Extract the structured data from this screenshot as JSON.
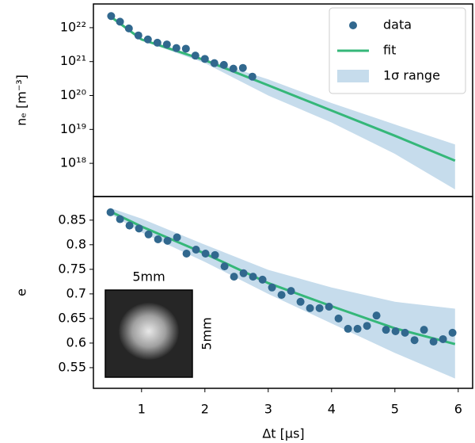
{
  "chart_data": [
    {
      "type": "line",
      "ylabel": "nₑ [m⁻³]",
      "yscale": "log",
      "xlim": [
        0.24,
        6.24
      ],
      "ylim": [
        1.05e+17,
        5e+22
      ],
      "yticks": [
        {
          "value": 1e+22,
          "label": "10²²"
        },
        {
          "value": 1e+21,
          "label": "10²¹"
        },
        {
          "value": 1e+20,
          "label": "10²⁰"
        },
        {
          "value": 1e+19,
          "label": "10¹⁹"
        },
        {
          "value": 1e+18,
          "label": "10¹⁸"
        }
      ],
      "legend": "upper right",
      "series": [
        {
          "name": "1σ range",
          "type": "band",
          "color": "#c6dcec",
          "x": [
            0.5,
            1,
            2,
            3,
            4,
            5,
            5.95
          ],
          "lower": [
            2.2e+22,
            4.2e+21,
            9e+20,
            1e+20,
            1.6e+19,
            1.9e+18,
            1.7e+17
          ],
          "upper": [
            2.2e+22,
            4.8e+21,
            1.2e+21,
            3e+20,
            6e+19,
            1.4e+19,
            3.6e+18
          ]
        },
        {
          "name": "fit",
          "type": "line",
          "color": "#35b779",
          "x": [
            0.5,
            1,
            2,
            3,
            4,
            5,
            5.95
          ],
          "values": [
            2.2e+22,
            4.5e+21,
            1.1e+21,
            2e+20,
            3.6e+19,
            6.5e+18,
            1.2e+18
          ]
        },
        {
          "name": "data",
          "type": "scatter",
          "color": "#31688e",
          "x": [
            0.52,
            0.66,
            0.8,
            0.95,
            1.1,
            1.25,
            1.4,
            1.55,
            1.7,
            1.85,
            2.0,
            2.15,
            2.3,
            2.45,
            2.6,
            2.75
          ],
          "values": [
            2.2e+22,
            1.5e+22,
            9.5e+21,
            5.9e+21,
            4.5e+21,
            3.6e+21,
            3.2e+21,
            2.5e+21,
            2.4e+21,
            1.5e+21,
            1.2e+21,
            9e+20,
            8e+20,
            6.2e+20,
            6.5e+20,
            3.6e+20
          ]
        }
      ]
    },
    {
      "type": "line",
      "ylabel": "e",
      "xlabel": "Δt [μs]",
      "xlim": [
        0.24,
        6.24
      ],
      "ylim": [
        0.508,
        0.898
      ],
      "xticks": [
        1,
        2,
        3,
        4,
        5,
        6
      ],
      "yticks": [
        0.85,
        0.8,
        0.75,
        0.7,
        0.65,
        0.6,
        0.55
      ],
      "inset": {
        "top_label": "5mm",
        "side_label": "5mm"
      },
      "series": [
        {
          "name": "1σ range",
          "type": "band",
          "color": "#c6dcec",
          "x": [
            0.5,
            1,
            2,
            3,
            4,
            5,
            5.95
          ],
          "lower": [
            0.863,
            0.825,
            0.765,
            0.7,
            0.64,
            0.58,
            0.528
          ],
          "upper": [
            0.875,
            0.853,
            0.8,
            0.749,
            0.713,
            0.684,
            0.67
          ]
        },
        {
          "name": "fit",
          "type": "line",
          "color": "#35b779",
          "x": [
            0.5,
            1,
            2,
            3,
            4,
            5,
            5.95
          ],
          "values": [
            0.868,
            0.837,
            0.782,
            0.722,
            0.675,
            0.63,
            0.598
          ]
        },
        {
          "name": "data",
          "type": "scatter",
          "color": "#31688e",
          "x": [
            0.51,
            0.66,
            0.81,
            0.96,
            1.11,
            1.26,
            1.41,
            1.56,
            1.71,
            1.86,
            2.01,
            2.16,
            2.31,
            2.46,
            2.61,
            2.76,
            2.91,
            3.06,
            3.21,
            3.36,
            3.51,
            3.66,
            3.81,
            3.96,
            4.11,
            4.26,
            4.41,
            4.56,
            4.71,
            4.86,
            5.01,
            5.16,
            5.31,
            5.46,
            5.61,
            5.76,
            5.91
          ],
          "values": [
            0.866,
            0.852,
            0.839,
            0.833,
            0.821,
            0.811,
            0.808,
            0.815,
            0.782,
            0.79,
            0.782,
            0.779,
            0.756,
            0.735,
            0.742,
            0.735,
            0.729,
            0.713,
            0.698,
            0.706,
            0.684,
            0.671,
            0.671,
            0.674,
            0.65,
            0.629,
            0.629,
            0.635,
            0.656,
            0.627,
            0.624,
            0.621,
            0.606,
            0.627,
            0.603,
            0.608,
            0.621
          ]
        }
      ]
    }
  ]
}
